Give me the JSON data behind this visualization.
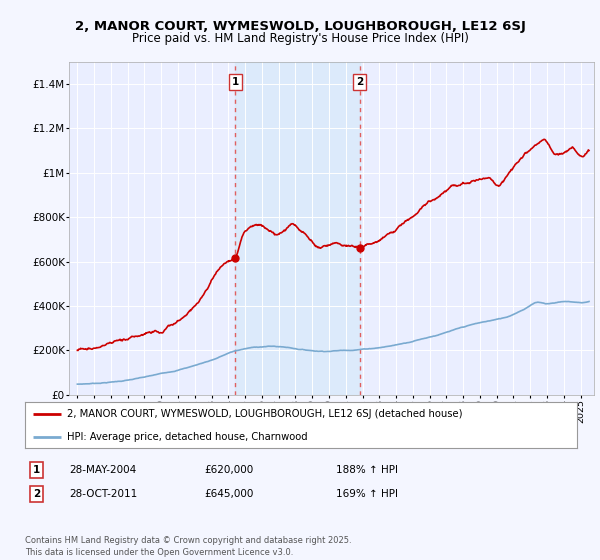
{
  "title_line1": "2, MANOR COURT, WYMESWOLD, LOUGHBOROUGH, LE12 6SJ",
  "title_line2": "Price paid vs. HM Land Registry's House Price Index (HPI)",
  "bg_color": "#f4f6ff",
  "plot_bg_color": "#eaeeff",
  "grid_color": "#ffffff",
  "red_line_color": "#cc0000",
  "blue_line_color": "#7aaad0",
  "sale1_date_x": 2004.4,
  "sale1_price": 620000,
  "sale1_label": "1",
  "sale2_date_x": 2011.82,
  "sale2_price": 645000,
  "sale2_label": "2",
  "ylabel_ticks": [
    0,
    200000,
    400000,
    600000,
    800000,
    1000000,
    1200000,
    1400000
  ],
  "ylabel_labels": [
    "£0",
    "£200K",
    "£400K",
    "£600K",
    "£800K",
    "£1M",
    "£1.2M",
    "£1.4M"
  ],
  "xmin": 1994.5,
  "xmax": 2025.8,
  "ymin": 0,
  "ymax": 1500000,
  "legend_red": "2, MANOR COURT, WYMESWOLD, LOUGHBOROUGH, LE12 6SJ (detached house)",
  "legend_blue": "HPI: Average price, detached house, Charnwood",
  "table_row1": [
    "1",
    "28-MAY-2004",
    "£620,000",
    "188% ↑ HPI"
  ],
  "table_row2": [
    "2",
    "28-OCT-2011",
    "£645,000",
    "169% ↑ HPI"
  ],
  "footer": "Contains HM Land Registry data © Crown copyright and database right 2025.\nThis data is licensed under the Open Government Licence v3.0.",
  "vline_color": "#e06060",
  "shade_color": "#d0e8f8",
  "shade_alpha": 0.5
}
